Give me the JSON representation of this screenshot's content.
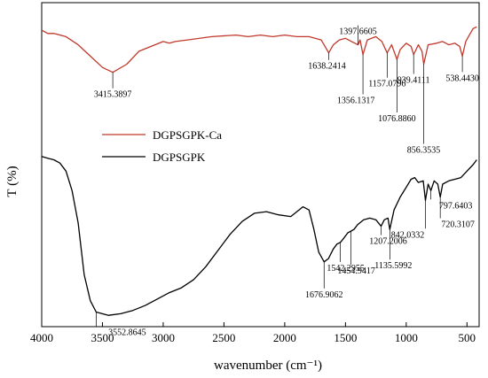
{
  "chart_data": {
    "type": "line",
    "xlabel": "wavenumber (cm⁻¹)",
    "ylabel": "T (%)",
    "xlim": [
      4000,
      400
    ],
    "x_reversed": true,
    "x_ticks": [
      4000,
      3500,
      3000,
      2500,
      2000,
      1500,
      1000,
      500
    ],
    "y_ticks": [],
    "grid": false,
    "legend_position": "middle-left",
    "series": [
      {
        "name": "DGPSGPK-Ca",
        "color": "#c0392b",
        "points": [
          [
            4000,
            0.915
          ],
          [
            3950,
            0.905
          ],
          [
            3900,
            0.905
          ],
          [
            3800,
            0.895
          ],
          [
            3700,
            0.87
          ],
          [
            3600,
            0.835
          ],
          [
            3500,
            0.8
          ],
          [
            3415,
            0.785
          ],
          [
            3300,
            0.81
          ],
          [
            3200,
            0.85
          ],
          [
            3100,
            0.865
          ],
          [
            3000,
            0.88
          ],
          [
            2950,
            0.875
          ],
          [
            2900,
            0.88
          ],
          [
            2800,
            0.885
          ],
          [
            2600,
            0.895
          ],
          [
            2400,
            0.9
          ],
          [
            2300,
            0.895
          ],
          [
            2200,
            0.9
          ],
          [
            2100,
            0.895
          ],
          [
            2000,
            0.9
          ],
          [
            1900,
            0.895
          ],
          [
            1800,
            0.895
          ],
          [
            1700,
            0.885
          ],
          [
            1638,
            0.845
          ],
          [
            1600,
            0.87
          ],
          [
            1550,
            0.885
          ],
          [
            1500,
            0.89
          ],
          [
            1450,
            0.88
          ],
          [
            1397,
            0.87
          ],
          [
            1380,
            0.885
          ],
          [
            1356,
            0.84
          ],
          [
            1320,
            0.885
          ],
          [
            1250,
            0.895
          ],
          [
            1200,
            0.88
          ],
          [
            1157,
            0.845
          ],
          [
            1120,
            0.87
          ],
          [
            1076,
            0.825
          ],
          [
            1050,
            0.855
          ],
          [
            1000,
            0.875
          ],
          [
            960,
            0.865
          ],
          [
            939,
            0.84
          ],
          [
            900,
            0.87
          ],
          [
            870,
            0.85
          ],
          [
            856,
            0.81
          ],
          [
            820,
            0.87
          ],
          [
            750,
            0.875
          ],
          [
            700,
            0.88
          ],
          [
            650,
            0.87
          ],
          [
            600,
            0.875
          ],
          [
            560,
            0.865
          ],
          [
            538,
            0.835
          ],
          [
            510,
            0.88
          ],
          [
            480,
            0.9
          ],
          [
            450,
            0.92
          ],
          [
            420,
            0.925
          ]
        ]
      },
      {
        "name": "DGPSGPK",
        "color": "#000000",
        "points": [
          [
            4000,
            0.525
          ],
          [
            3950,
            0.52
          ],
          [
            3900,
            0.515
          ],
          [
            3850,
            0.505
          ],
          [
            3800,
            0.48
          ],
          [
            3750,
            0.42
          ],
          [
            3700,
            0.32
          ],
          [
            3650,
            0.16
          ],
          [
            3600,
            0.08
          ],
          [
            3552,
            0.045
          ],
          [
            3450,
            0.035
          ],
          [
            3350,
            0.04
          ],
          [
            3250,
            0.05
          ],
          [
            3150,
            0.065
          ],
          [
            3050,
            0.085
          ],
          [
            2950,
            0.105
          ],
          [
            2850,
            0.12
          ],
          [
            2750,
            0.145
          ],
          [
            2650,
            0.185
          ],
          [
            2550,
            0.235
          ],
          [
            2450,
            0.285
          ],
          [
            2350,
            0.325
          ],
          [
            2250,
            0.35
          ],
          [
            2150,
            0.355
          ],
          [
            2050,
            0.345
          ],
          [
            1950,
            0.34
          ],
          [
            1900,
            0.355
          ],
          [
            1850,
            0.37
          ],
          [
            1800,
            0.36
          ],
          [
            1760,
            0.3
          ],
          [
            1720,
            0.23
          ],
          [
            1676,
            0.2
          ],
          [
            1640,
            0.21
          ],
          [
            1600,
            0.24
          ],
          [
            1570,
            0.255
          ],
          [
            1542,
            0.26
          ],
          [
            1520,
            0.27
          ],
          [
            1480,
            0.29
          ],
          [
            1454,
            0.295
          ],
          [
            1430,
            0.3
          ],
          [
            1400,
            0.315
          ],
          [
            1350,
            0.33
          ],
          [
            1300,
            0.335
          ],
          [
            1250,
            0.33
          ],
          [
            1207,
            0.31
          ],
          [
            1180,
            0.33
          ],
          [
            1150,
            0.335
          ],
          [
            1135,
            0.3
          ],
          [
            1100,
            0.36
          ],
          [
            1050,
            0.4
          ],
          [
            1000,
            0.43
          ],
          [
            960,
            0.455
          ],
          [
            930,
            0.46
          ],
          [
            900,
            0.445
          ],
          [
            860,
            0.45
          ],
          [
            842,
            0.39
          ],
          [
            820,
            0.44
          ],
          [
            797,
            0.42
          ],
          [
            770,
            0.45
          ],
          [
            740,
            0.44
          ],
          [
            720,
            0.4
          ],
          [
            700,
            0.44
          ],
          [
            650,
            0.45
          ],
          [
            600,
            0.455
          ],
          [
            550,
            0.46
          ],
          [
            500,
            0.48
          ],
          [
            450,
            0.5
          ],
          [
            420,
            0.515
          ]
        ]
      }
    ],
    "peaks": [
      {
        "series": "DGPSGPK-Ca",
        "x": 3415,
        "label": "3415.3897"
      },
      {
        "series": "DGPSGPK-Ca",
        "x": 1638,
        "label": "1638.2414"
      },
      {
        "series": "DGPSGPK-Ca",
        "x": 1397,
        "label": "1397.6605"
      },
      {
        "series": "DGPSGPK-Ca",
        "x": 1356,
        "label": "1356.1317"
      },
      {
        "series": "DGPSGPK-Ca",
        "x": 1157,
        "label": "1157.0796"
      },
      {
        "series": "DGPSGPK-Ca",
        "x": 1076,
        "label": "1076.8860"
      },
      {
        "series": "DGPSGPK-Ca",
        "x": 939,
        "label": "939.4111"
      },
      {
        "series": "DGPSGPK-Ca",
        "x": 856,
        "label": "856.3535"
      },
      {
        "series": "DGPSGPK-Ca",
        "x": 538,
        "label": "538.4430"
      },
      {
        "series": "DGPSGPK",
        "x": 3552,
        "label": "3552.8645"
      },
      {
        "series": "DGPSGPK",
        "x": 1676,
        "label": "1676.9062"
      },
      {
        "series": "DGPSGPK",
        "x": 1542,
        "label": "1542.2955"
      },
      {
        "series": "DGPSGPK",
        "x": 1454,
        "label": "1454.9417"
      },
      {
        "series": "DGPSGPK",
        "x": 1207,
        "label": "1207.2006"
      },
      {
        "series": "DGPSGPK",
        "x": 1135,
        "label": "1135.5992"
      },
      {
        "series": "DGPSGPK",
        "x": 842,
        "label": "842.0332"
      },
      {
        "series": "DGPSGPK",
        "x": 797,
        "label": "797.6403"
      },
      {
        "series": "DGPSGPK",
        "x": 720,
        "label": "720.3107"
      }
    ]
  }
}
